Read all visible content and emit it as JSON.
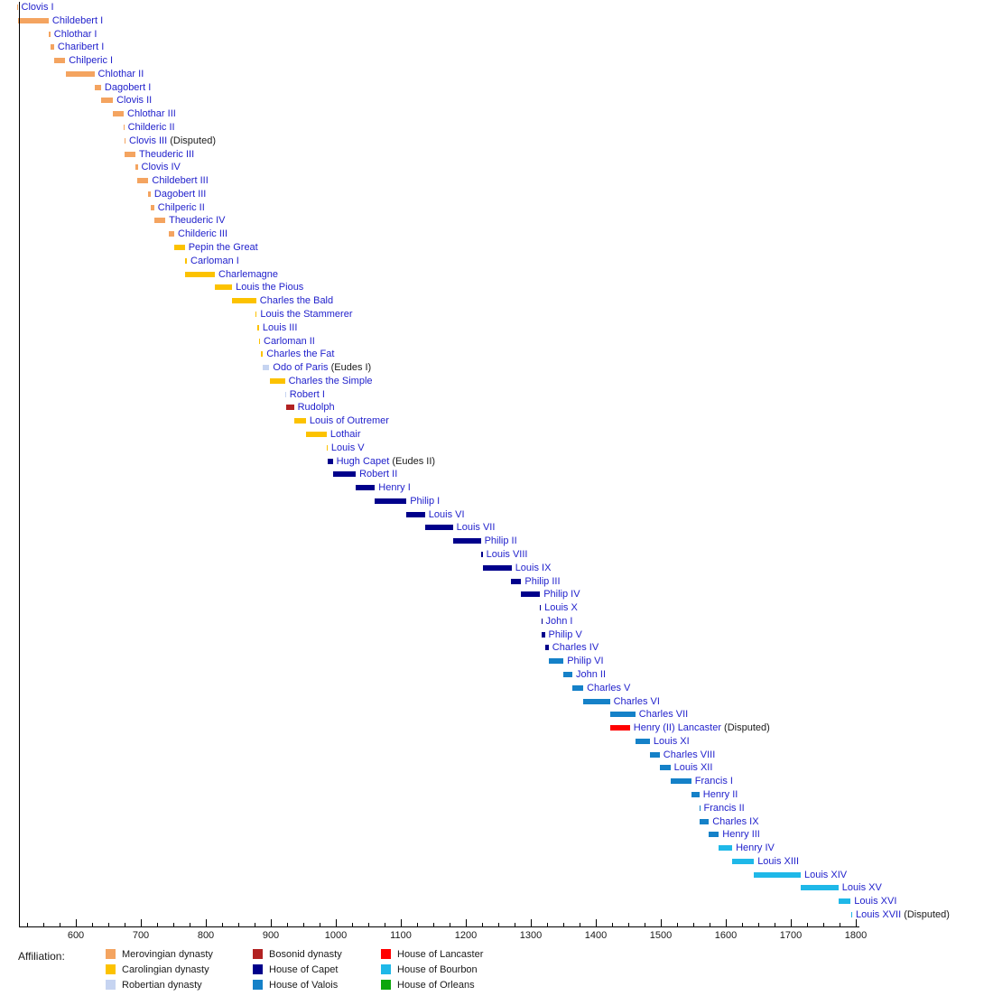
{
  "chart_data": {
    "type": "bar",
    "variant": "reign_timeline_gantt",
    "description": "Horizontal timeline of reigns of French monarchs, one row per monarch, colored by dynasty affiliation",
    "x_axis": {
      "unit": "year",
      "min": 511,
      "max": 1806,
      "major_ticks": [
        600,
        700,
        800,
        900,
        1000,
        1100,
        1200,
        1300,
        1400,
        1500,
        1600,
        1700,
        1800
      ],
      "minor_tick_step": 25,
      "grid": false
    },
    "text_colors": {
      "monarch_name": "#2222CC",
      "note_text": "#1A1A1A",
      "axis_text": "#1A1A1A"
    },
    "legend": {
      "label": "Affiliation:",
      "position": "bottom",
      "order": [
        "merovingian",
        "carolingian",
        "robertian",
        "bosonid",
        "capet",
        "valois",
        "lancaster",
        "bourbon",
        "orleans"
      ]
    },
    "houses": {
      "merovingian": {
        "label": "Merovingian dynasty",
        "color": "#F4A460"
      },
      "carolingian": {
        "label": "Carolingian dynasty",
        "color": "#FCC200"
      },
      "robertian": {
        "label": "Robertian dynasty",
        "color": "#C6D4F1"
      },
      "bosonid": {
        "label": "Bosonid dynasty",
        "color": "#B22222"
      },
      "capet": {
        "label": "House of Capet",
        "color": "#00008B"
      },
      "valois": {
        "label": "House of Valois",
        "color": "#1581C8"
      },
      "lancaster": {
        "label": "House of Lancaster",
        "color": "#FF0000"
      },
      "bourbon": {
        "label": "House of Bourbon",
        "color": "#1FB8E8"
      },
      "orleans": {
        "label": "House of Orleans",
        "color": "#0CA60C"
      }
    },
    "monarchs": [
      {
        "name": "Clovis I",
        "note": "",
        "start": 509,
        "end": 511,
        "house": "merovingian"
      },
      {
        "name": "Childebert I",
        "note": "",
        "start": 511,
        "end": 558,
        "house": "merovingian"
      },
      {
        "name": "Chlothar I",
        "note": "",
        "start": 558,
        "end": 561,
        "house": "merovingian"
      },
      {
        "name": "Charibert I",
        "note": "",
        "start": 561,
        "end": 567,
        "house": "merovingian"
      },
      {
        "name": "Chilperic I",
        "note": "",
        "start": 567,
        "end": 584,
        "house": "merovingian"
      },
      {
        "name": "Chlothar II",
        "note": "",
        "start": 584,
        "end": 629,
        "house": "merovingian"
      },
      {
        "name": "Dagobert I",
        "note": "",
        "start": 629,
        "end": 639,
        "house": "merovingian"
      },
      {
        "name": "Clovis II",
        "note": "",
        "start": 639,
        "end": 657,
        "house": "merovingian"
      },
      {
        "name": "Chlothar III",
        "note": "",
        "start": 657,
        "end": 673,
        "house": "merovingian"
      },
      {
        "name": "Childeric II",
        "note": "",
        "start": 673,
        "end": 675,
        "house": "merovingian"
      },
      {
        "name": "Clovis III",
        "note": "(Disputed)",
        "start": 675,
        "end": 676,
        "house": "merovingian"
      },
      {
        "name": "Theuderic III",
        "note": "",
        "start": 675,
        "end": 691,
        "house": "merovingian"
      },
      {
        "name": "Clovis IV",
        "note": "",
        "start": 691,
        "end": 695,
        "house": "merovingian"
      },
      {
        "name": "Childebert III",
        "note": "",
        "start": 695,
        "end": 711,
        "house": "merovingian"
      },
      {
        "name": "Dagobert III",
        "note": "",
        "start": 711,
        "end": 715,
        "house": "merovingian"
      },
      {
        "name": "Chilperic II",
        "note": "",
        "start": 715,
        "end": 721,
        "house": "merovingian"
      },
      {
        "name": "Theuderic IV",
        "note": "",
        "start": 721,
        "end": 737,
        "house": "merovingian"
      },
      {
        "name": "Childeric III",
        "note": "",
        "start": 743,
        "end": 751,
        "house": "merovingian"
      },
      {
        "name": "Pepin the Great",
        "note": "",
        "start": 751,
        "end": 768,
        "house": "carolingian"
      },
      {
        "name": "Carloman I",
        "note": "",
        "start": 768,
        "end": 771,
        "house": "carolingian"
      },
      {
        "name": "Charlemagne",
        "note": "",
        "start": 768,
        "end": 814,
        "house": "carolingian"
      },
      {
        "name": "Louis the Pious",
        "note": "",
        "start": 814,
        "end": 840,
        "house": "carolingian"
      },
      {
        "name": "Charles the Bald",
        "note": "",
        "start": 840,
        "end": 877,
        "house": "carolingian"
      },
      {
        "name": "Louis the Stammerer",
        "note": "",
        "start": 877,
        "end": 879,
        "house": "carolingian"
      },
      {
        "name": "Louis III",
        "note": "",
        "start": 879,
        "end": 882,
        "house": "carolingian"
      },
      {
        "name": "Carloman II",
        "note": "",
        "start": 882,
        "end": 884,
        "house": "carolingian"
      },
      {
        "name": "Charles the Fat",
        "note": "",
        "start": 885,
        "end": 888,
        "house": "carolingian"
      },
      {
        "name": "Odo of Paris",
        "note": "(Eudes I)",
        "start": 888,
        "end": 898,
        "house": "robertian"
      },
      {
        "name": "Charles the Simple",
        "note": "",
        "start": 898,
        "end": 922,
        "house": "carolingian"
      },
      {
        "name": "Robert I",
        "note": "",
        "start": 922,
        "end": 923,
        "house": "robertian"
      },
      {
        "name": "Rudolph",
        "note": "",
        "start": 923,
        "end": 936,
        "house": "bosonid"
      },
      {
        "name": "Louis of Outremer",
        "note": "",
        "start": 936,
        "end": 954,
        "house": "carolingian"
      },
      {
        "name": "Lothair",
        "note": "",
        "start": 954,
        "end": 986,
        "house": "carolingian"
      },
      {
        "name": "Louis V",
        "note": "",
        "start": 986,
        "end": 987,
        "house": "carolingian"
      },
      {
        "name": "Hugh Capet",
        "note": "(Eudes II)",
        "start": 987,
        "end": 996,
        "house": "capet"
      },
      {
        "name": "Robert II",
        "note": "",
        "start": 996,
        "end": 1031,
        "house": "capet"
      },
      {
        "name": "Henry I",
        "note": "",
        "start": 1031,
        "end": 1060,
        "house": "capet"
      },
      {
        "name": "Philip I",
        "note": "",
        "start": 1060,
        "end": 1108,
        "house": "capet"
      },
      {
        "name": "Louis VI",
        "note": "",
        "start": 1108,
        "end": 1137,
        "house": "capet"
      },
      {
        "name": "Louis VII",
        "note": "",
        "start": 1137,
        "end": 1180,
        "house": "capet"
      },
      {
        "name": "Philip II",
        "note": "",
        "start": 1180,
        "end": 1223,
        "house": "capet"
      },
      {
        "name": "Louis VIII",
        "note": "",
        "start": 1223,
        "end": 1226,
        "house": "capet"
      },
      {
        "name": "Louis IX",
        "note": "",
        "start": 1226,
        "end": 1270,
        "house": "capet"
      },
      {
        "name": "Philip III",
        "note": "",
        "start": 1270,
        "end": 1285,
        "house": "capet"
      },
      {
        "name": "Philip IV",
        "note": "",
        "start": 1285,
        "end": 1314,
        "house": "capet"
      },
      {
        "name": "Louis X",
        "note": "",
        "start": 1314,
        "end": 1316,
        "house": "capet"
      },
      {
        "name": "John I",
        "note": "",
        "start": 1316,
        "end": 1316,
        "house": "capet"
      },
      {
        "name": "Philip V",
        "note": "",
        "start": 1316,
        "end": 1322,
        "house": "capet"
      },
      {
        "name": "Charles IV",
        "note": "",
        "start": 1322,
        "end": 1328,
        "house": "capet"
      },
      {
        "name": "Philip VI",
        "note": "",
        "start": 1328,
        "end": 1350,
        "house": "valois"
      },
      {
        "name": "John II",
        "note": "",
        "start": 1350,
        "end": 1364,
        "house": "valois"
      },
      {
        "name": "Charles V",
        "note": "",
        "start": 1364,
        "end": 1380,
        "house": "valois"
      },
      {
        "name": "Charles VI",
        "note": "",
        "start": 1380,
        "end": 1422,
        "house": "valois"
      },
      {
        "name": "Charles VII",
        "note": "",
        "start": 1422,
        "end": 1461,
        "house": "valois"
      },
      {
        "name": "Henry (II) Lancaster",
        "note": "(Disputed)",
        "start": 1422,
        "end": 1453,
        "house": "lancaster"
      },
      {
        "name": "Louis XI",
        "note": "",
        "start": 1461,
        "end": 1483,
        "house": "valois"
      },
      {
        "name": "Charles VIII",
        "note": "",
        "start": 1483,
        "end": 1498,
        "house": "valois"
      },
      {
        "name": "Louis XII",
        "note": "",
        "start": 1498,
        "end": 1515,
        "house": "valois"
      },
      {
        "name": "Francis I",
        "note": "",
        "start": 1515,
        "end": 1547,
        "house": "valois"
      },
      {
        "name": "Henry II",
        "note": "",
        "start": 1547,
        "end": 1559,
        "house": "valois"
      },
      {
        "name": "Francis II",
        "note": "",
        "start": 1559,
        "end": 1560,
        "house": "valois"
      },
      {
        "name": "Charles IX",
        "note": "",
        "start": 1560,
        "end": 1574,
        "house": "valois"
      },
      {
        "name": "Henry III",
        "note": "",
        "start": 1574,
        "end": 1589,
        "house": "valois"
      },
      {
        "name": "Henry IV",
        "note": "",
        "start": 1589,
        "end": 1610,
        "house": "bourbon"
      },
      {
        "name": "Louis XIII",
        "note": "",
        "start": 1610,
        "end": 1643,
        "house": "bourbon"
      },
      {
        "name": "Louis XIV",
        "note": "",
        "start": 1643,
        "end": 1715,
        "house": "bourbon"
      },
      {
        "name": "Louis XV",
        "note": "",
        "start": 1715,
        "end": 1774,
        "house": "bourbon"
      },
      {
        "name": "Louis XVI",
        "note": "",
        "start": 1774,
        "end": 1792,
        "house": "bourbon"
      },
      {
        "name": "Louis XVII",
        "note": "(Disputed)",
        "start": 1793,
        "end": 1795,
        "house": "bourbon"
      }
    ]
  }
}
